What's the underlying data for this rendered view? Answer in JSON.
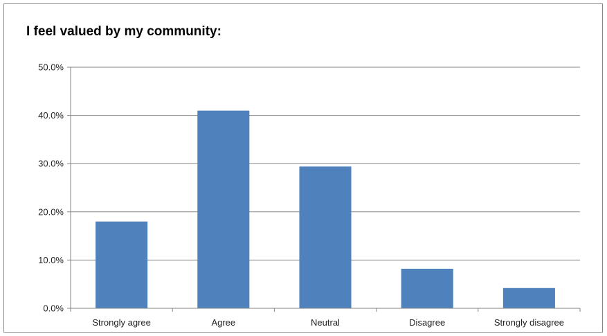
{
  "chart_data": {
    "type": "bar",
    "title": "I feel valued by my community:",
    "xlabel": "",
    "ylabel": "",
    "categories": [
      "Strongly agree",
      "Agree",
      "Neutral",
      "Disagree",
      "Strongly disagree"
    ],
    "values": [
      18.0,
      41.0,
      29.4,
      8.2,
      4.2
    ],
    "ylim": [
      0,
      50
    ],
    "yticks": [
      "0.0%",
      "10.0%",
      "20.0%",
      "30.0%",
      "40.0%",
      "50.0%"
    ],
    "grid": true,
    "legend": "none",
    "bar_color": "#4F81BD",
    "grid_color": "#868686"
  }
}
